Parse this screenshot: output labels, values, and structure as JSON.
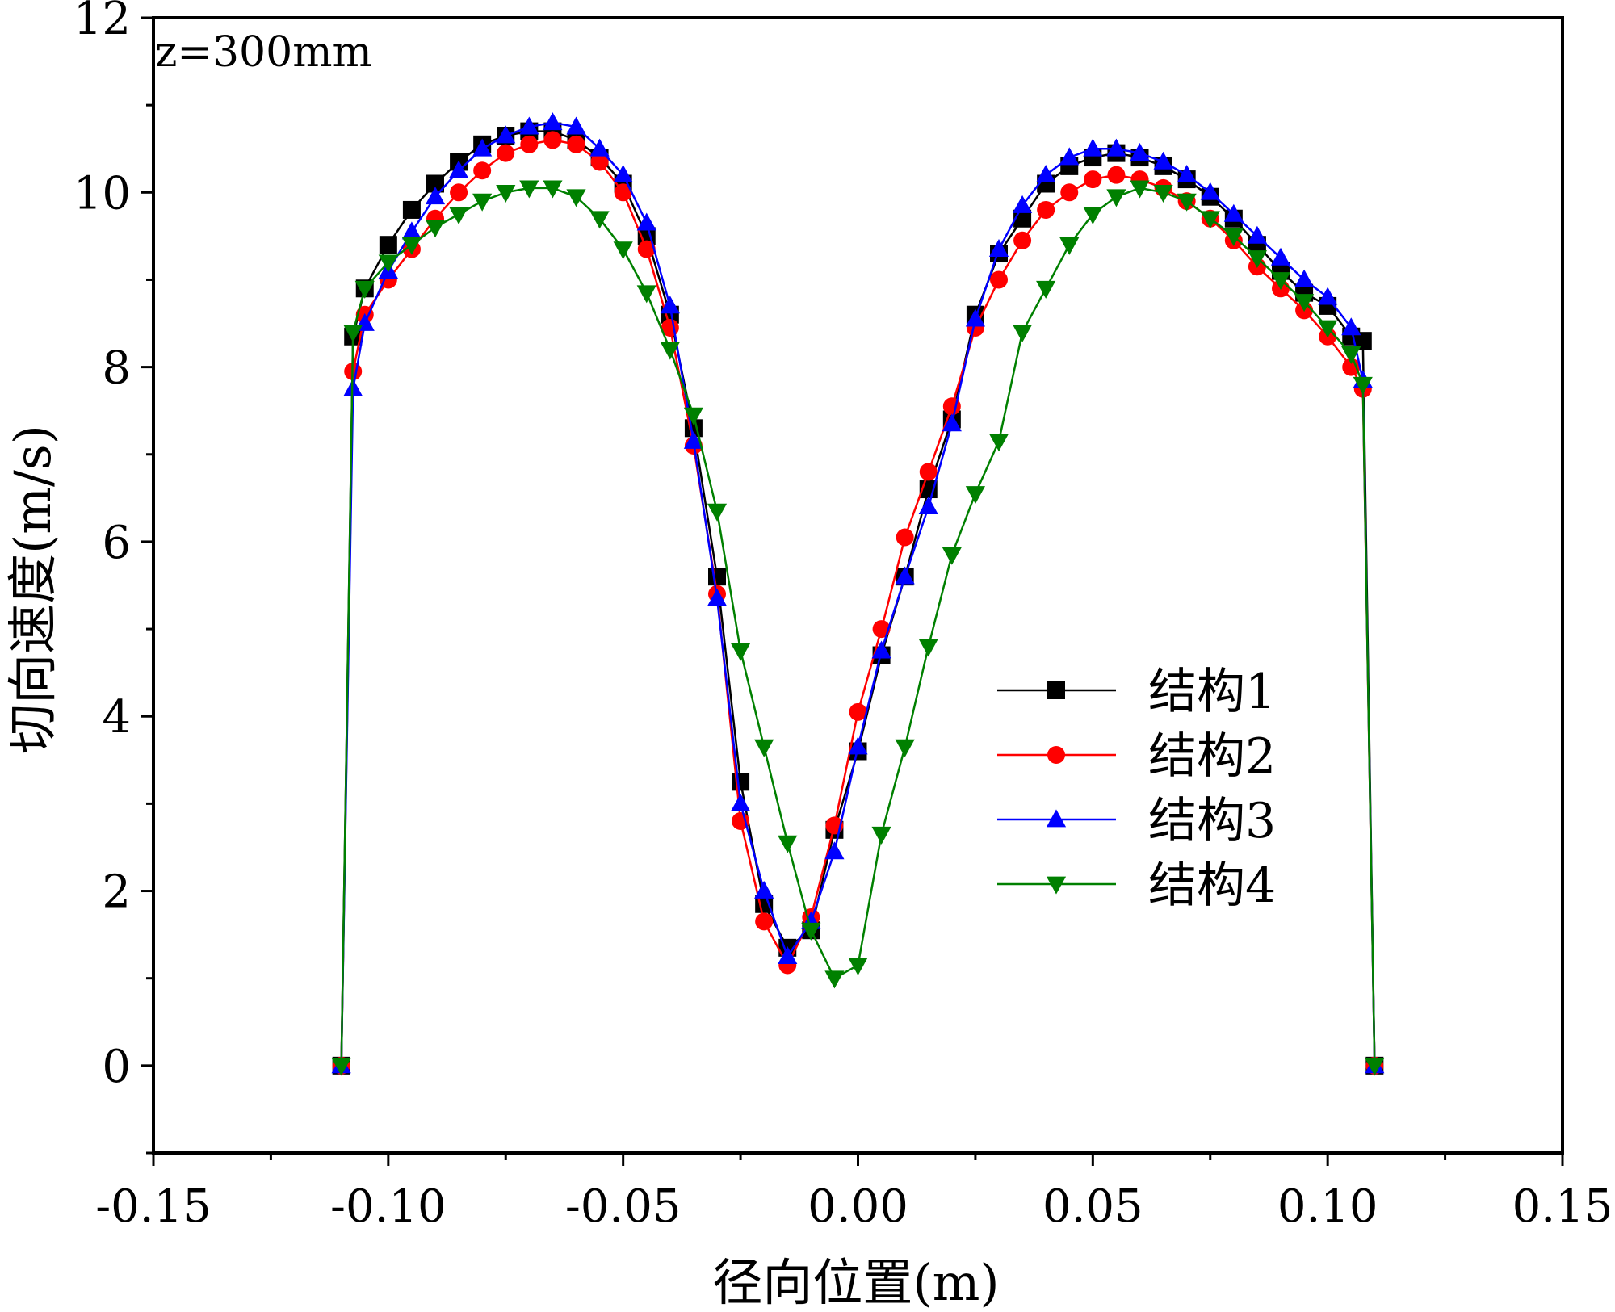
{
  "chart_data": {
    "type": "line",
    "annotation": "z=300mm",
    "xlabel": "径向位置(m)",
    "ylabel": "切向速度(m/s)",
    "xlim": [
      -0.15,
      0.15
    ],
    "ylim": [
      -1,
      12
    ],
    "x_ticks": [
      -0.15,
      -0.1,
      -0.05,
      0.0,
      0.05,
      0.1,
      0.15
    ],
    "x_tick_labels": [
      "-0.15",
      "-0.10",
      "-0.05",
      "0.00",
      "0.05",
      "0.10",
      "0.15"
    ],
    "y_ticks": [
      0,
      2,
      4,
      6,
      8,
      10,
      12
    ],
    "y_tick_labels": [
      "0",
      "2",
      "4",
      "6",
      "8",
      "10",
      "12"
    ],
    "legend_position": "center-right",
    "series": [
      {
        "name": "结构1",
        "color": "#000000",
        "marker": "square",
        "x": [
          -0.11,
          -0.1075,
          -0.105,
          -0.1,
          -0.095,
          -0.09,
          -0.085,
          -0.08,
          -0.075,
          -0.07,
          -0.065,
          -0.06,
          -0.055,
          -0.05,
          -0.045,
          -0.04,
          -0.035,
          -0.03,
          -0.025,
          -0.02,
          -0.015,
          -0.01,
          -0.005,
          0.0,
          0.005,
          0.01,
          0.015,
          0.02,
          0.025,
          0.03,
          0.035,
          0.04,
          0.045,
          0.05,
          0.055,
          0.06,
          0.065,
          0.07,
          0.075,
          0.08,
          0.085,
          0.09,
          0.095,
          0.1,
          0.105,
          0.1075,
          0.11
        ],
        "y": [
          0,
          8.35,
          8.9,
          9.4,
          9.8,
          10.1,
          10.35,
          10.55,
          10.65,
          10.7,
          10.7,
          10.6,
          10.4,
          10.1,
          9.5,
          8.6,
          7.3,
          5.6,
          3.25,
          1.85,
          1.35,
          1.55,
          2.7,
          3.6,
          4.7,
          5.6,
          6.6,
          7.4,
          8.6,
          9.3,
          9.7,
          10.1,
          10.3,
          10.4,
          10.45,
          10.4,
          10.3,
          10.15,
          9.95,
          9.7,
          9.4,
          9.1,
          8.85,
          8.7,
          8.35,
          8.3,
          0
        ],
        "x_marks": [
          -0.11,
          -0.1075,
          -0.105,
          -0.1,
          -0.095,
          -0.09,
          -0.085,
          -0.08,
          -0.075,
          -0.07,
          -0.065,
          -0.06,
          -0.055,
          -0.05,
          -0.045,
          -0.04,
          -0.035,
          -0.03,
          -0.025,
          -0.02,
          -0.015,
          -0.01,
          -0.005,
          0.0,
          0.005,
          0.01,
          0.015,
          0.02,
          0.025,
          0.03,
          0.035,
          0.04,
          0.045,
          0.05,
          0.055,
          0.06,
          0.065,
          0.07,
          0.075,
          0.08,
          0.085,
          0.09,
          0.095,
          0.1,
          0.105,
          0.1075,
          0.11
        ]
      },
      {
        "name": "结构2",
        "color": "#ff0000",
        "marker": "circle",
        "x": [
          -0.11,
          -0.1075,
          -0.105,
          -0.1,
          -0.095,
          -0.09,
          -0.085,
          -0.08,
          -0.075,
          -0.07,
          -0.065,
          -0.06,
          -0.055,
          -0.05,
          -0.045,
          -0.04,
          -0.035,
          -0.03,
          -0.025,
          -0.02,
          -0.015,
          -0.01,
          -0.005,
          0.0,
          0.005,
          0.01,
          0.015,
          0.02,
          0.025,
          0.03,
          0.035,
          0.04,
          0.045,
          0.05,
          0.055,
          0.06,
          0.065,
          0.07,
          0.075,
          0.08,
          0.085,
          0.09,
          0.095,
          0.1,
          0.105,
          0.1075,
          0.11
        ],
        "y": [
          0,
          7.95,
          8.6,
          9.0,
          9.35,
          9.7,
          10.0,
          10.25,
          10.45,
          10.55,
          10.6,
          10.55,
          10.35,
          10.0,
          9.35,
          8.45,
          7.1,
          5.4,
          2.8,
          1.65,
          1.15,
          1.7,
          2.75,
          4.05,
          5.0,
          6.05,
          6.8,
          7.55,
          8.45,
          9.0,
          9.45,
          9.8,
          10.0,
          10.15,
          10.2,
          10.15,
          10.05,
          9.9,
          9.7,
          9.45,
          9.15,
          8.9,
          8.65,
          8.35,
          8.0,
          7.75,
          0
        ],
        "x_marks": [
          -0.11,
          -0.1075,
          -0.105,
          -0.1,
          -0.095,
          -0.09,
          -0.085,
          -0.08,
          -0.075,
          -0.07,
          -0.065,
          -0.06,
          -0.055,
          -0.05,
          -0.045,
          -0.04,
          -0.035,
          -0.03,
          -0.025,
          -0.02,
          -0.015,
          -0.01,
          -0.005,
          0.0,
          0.005,
          0.01,
          0.015,
          0.02,
          0.025,
          0.03,
          0.035,
          0.04,
          0.045,
          0.05,
          0.055,
          0.06,
          0.065,
          0.07,
          0.075,
          0.08,
          0.085,
          0.09,
          0.095,
          0.1,
          0.105,
          0.1075,
          0.11
        ]
      },
      {
        "name": "结构3",
        "color": "#0000ff",
        "marker": "triangle-up",
        "x": [
          -0.11,
          -0.1075,
          -0.105,
          -0.1,
          -0.095,
          -0.09,
          -0.085,
          -0.08,
          -0.075,
          -0.07,
          -0.065,
          -0.06,
          -0.055,
          -0.05,
          -0.045,
          -0.04,
          -0.035,
          -0.03,
          -0.025,
          -0.02,
          -0.015,
          -0.01,
          -0.005,
          0.0,
          0.005,
          0.01,
          0.015,
          0.02,
          0.025,
          0.03,
          0.035,
          0.04,
          0.045,
          0.05,
          0.055,
          0.06,
          0.065,
          0.07,
          0.075,
          0.08,
          0.085,
          0.09,
          0.095,
          0.1,
          0.105,
          0.1075,
          0.11
        ],
        "y": [
          0,
          7.75,
          8.5,
          9.1,
          9.55,
          9.95,
          10.25,
          10.5,
          10.65,
          10.75,
          10.8,
          10.75,
          10.5,
          10.2,
          9.65,
          8.7,
          7.15,
          5.35,
          3.0,
          2.0,
          1.25,
          1.65,
          2.45,
          3.65,
          4.75,
          5.6,
          6.4,
          7.35,
          8.55,
          9.35,
          9.85,
          10.2,
          10.4,
          10.5,
          10.5,
          10.45,
          10.35,
          10.2,
          10.0,
          9.75,
          9.5,
          9.25,
          9.0,
          8.8,
          8.45,
          7.85,
          0
        ],
        "x_marks": [
          -0.11,
          -0.1075,
          -0.105,
          -0.1,
          -0.095,
          -0.09,
          -0.085,
          -0.08,
          -0.075,
          -0.07,
          -0.065,
          -0.06,
          -0.055,
          -0.05,
          -0.045,
          -0.04,
          -0.035,
          -0.03,
          -0.025,
          -0.02,
          -0.015,
          -0.01,
          -0.005,
          0.0,
          0.005,
          0.01,
          0.015,
          0.02,
          0.025,
          0.03,
          0.035,
          0.04,
          0.045,
          0.05,
          0.055,
          0.06,
          0.065,
          0.07,
          0.075,
          0.08,
          0.085,
          0.09,
          0.095,
          0.1,
          0.105,
          0.1075,
          0.11
        ]
      },
      {
        "name": "结构4",
        "color": "#008000",
        "marker": "triangle-down",
        "x": [
          -0.11,
          -0.1075,
          -0.105,
          -0.1,
          -0.095,
          -0.09,
          -0.085,
          -0.08,
          -0.075,
          -0.07,
          -0.065,
          -0.06,
          -0.055,
          -0.05,
          -0.045,
          -0.04,
          -0.035,
          -0.03,
          -0.025,
          -0.02,
          -0.015,
          -0.01,
          -0.005,
          0.0,
          0.005,
          0.01,
          0.015,
          0.02,
          0.025,
          0.03,
          0.035,
          0.04,
          0.045,
          0.05,
          0.055,
          0.06,
          0.065,
          0.07,
          0.075,
          0.08,
          0.085,
          0.09,
          0.095,
          0.1,
          0.105,
          0.1075,
          0.11
        ],
        "y": [
          0,
          8.4,
          8.9,
          9.2,
          9.4,
          9.6,
          9.75,
          9.9,
          10.0,
          10.05,
          10.05,
          9.95,
          9.7,
          9.35,
          8.85,
          8.2,
          7.45,
          6.35,
          4.75,
          3.65,
          2.55,
          1.55,
          1.0,
          1.15,
          2.65,
          3.65,
          4.8,
          5.85,
          6.55,
          7.15,
          8.4,
          8.9,
          9.4,
          9.75,
          9.95,
          10.05,
          10.0,
          9.9,
          9.7,
          9.5,
          9.25,
          9.0,
          8.75,
          8.45,
          8.15,
          7.8,
          0
        ],
        "x_marks": [
          -0.11,
          -0.1075,
          -0.105,
          -0.1,
          -0.095,
          -0.09,
          -0.085,
          -0.08,
          -0.075,
          -0.07,
          -0.065,
          -0.06,
          -0.055,
          -0.05,
          -0.045,
          -0.04,
          -0.035,
          -0.03,
          -0.025,
          -0.02,
          -0.015,
          -0.01,
          -0.005,
          0.0,
          0.005,
          0.01,
          0.015,
          0.02,
          0.025,
          0.03,
          0.035,
          0.04,
          0.045,
          0.05,
          0.055,
          0.06,
          0.065,
          0.07,
          0.075,
          0.08,
          0.085,
          0.09,
          0.095,
          0.1,
          0.105,
          0.1075,
          0.11
        ]
      }
    ]
  }
}
